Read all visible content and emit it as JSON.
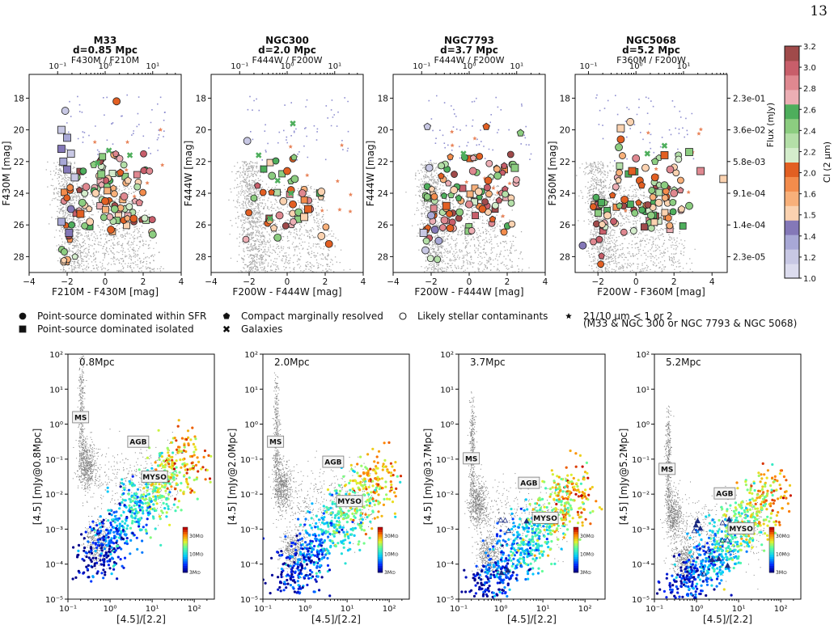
{
  "page_number": "13",
  "colors": {
    "background_points": "#8c8c8c",
    "stellar_contaminant": "#8f8fd0",
    "star_marker": "#e8845a",
    "ci_bins": [
      "#dcdcee",
      "#c8c8e4",
      "#a8a8d6",
      "#8478b8",
      "#fbd2b0",
      "#f8b07a",
      "#f38c4c",
      "#e25f22",
      "#d4edcc",
      "#b4dfa8",
      "#8ccd80",
      "#4eae5c",
      "#ecaeb4",
      "#df8890",
      "#c85e6a",
      "#a04a4a"
    ]
  },
  "top_panels": [
    {
      "title": "M33",
      "subtitle": "d=0.85 Mpc",
      "top_axis_label": "F430M / F210M",
      "x_label": "F210M - F430M [mag]",
      "y_label": "F430M [mag]",
      "x_ticks": [
        "−4",
        "−2",
        "0",
        "2",
        "4"
      ],
      "y_ticks": [
        "18",
        "20",
        "22",
        "24",
        "26",
        "28"
      ],
      "top_ticks": [
        "10⁻¹",
        "10⁰",
        "10¹"
      ]
    },
    {
      "title": "NGC300",
      "subtitle": "d=2.0 Mpc",
      "top_axis_label": "F444W / F200W",
      "x_label": "F200W - F444W [mag]",
      "y_label": "F444W [mag]",
      "x_ticks": [
        "−4",
        "−2",
        "0",
        "2",
        "4"
      ],
      "y_ticks": [
        "18",
        "20",
        "22",
        "24",
        "26",
        "28"
      ],
      "top_ticks": [
        "10⁻¹",
        "10⁰",
        "10¹"
      ]
    },
    {
      "title": "NGC7793",
      "subtitle": "d=3.7 Mpc",
      "top_axis_label": "F444W / F200W",
      "x_label": "F200W - F444W [mag]",
      "y_label": "F444W [mag]",
      "x_ticks": [
        "−4",
        "−2",
        "0",
        "2",
        "4"
      ],
      "y_ticks": [
        "18",
        "20",
        "22",
        "24",
        "26",
        "28"
      ],
      "top_ticks": [
        "10⁻¹",
        "10⁰",
        "10¹"
      ]
    },
    {
      "title": "NGC5068",
      "subtitle": "d=5.2 Mpc",
      "top_axis_label": "F360M / F200W",
      "x_label": "F200W - F360M [mag]",
      "y_label": "F360M [mag]",
      "x_ticks": [
        "−2",
        "0",
        "2",
        "4"
      ],
      "y_ticks": [
        "18",
        "20",
        "22",
        "24",
        "26",
        "28"
      ],
      "top_ticks": [
        "10⁻¹",
        "10⁰",
        "10¹"
      ],
      "right_axis_label": "Flux (mJy)",
      "right_ticks": [
        "2.3e-01",
        "3.6e-02",
        "5.8e-03",
        "9.1e-04",
        "1.4e-04",
        "2.3e-05"
      ]
    }
  ],
  "colorbar": {
    "label": "CI (2 μm)",
    "ticks": [
      "1.0",
      "1.2",
      "1.4",
      "1.5",
      "1.6",
      "2.0",
      "2.2",
      "2.4",
      "2.6",
      "2.8",
      "3.0",
      "3.2"
    ]
  },
  "legend": {
    "items": [
      {
        "symbol": "circle",
        "label": "Point-source dominated within SFR"
      },
      {
        "symbol": "square",
        "label": "Point-source dominated isolated"
      },
      {
        "symbol": "pentagon",
        "label": "Compact marginally resolved"
      },
      {
        "symbol": "cross",
        "label": "Galaxies"
      },
      {
        "symbol": "open-circle",
        "label": "Likely stellar contaminants"
      },
      {
        "symbol": "star",
        "label": "21/10 μm < 1 or 2"
      }
    ],
    "star_note": "(M33 & NGC 300 or NGC 7793 & NGC 5068)"
  },
  "bottom_panels": [
    {
      "distance_label": "0.8Mpc",
      "y_label": "[4.5] [mJy@0.8Mpc]",
      "x_label": "[4.5]/[2.2]"
    },
    {
      "distance_label": "2.0Mpc",
      "y_label": "[4.5] [mJy@2.0Mpc]",
      "x_label": "[4.5]/[2.2]"
    },
    {
      "distance_label": "3.7Mpc",
      "y_label": "[4.5] [mJy@3.7Mpc]",
      "x_label": "[4.5]/[2.2]"
    },
    {
      "distance_label": "5.2Mpc",
      "y_label": "[4.5] [mJy@5.2Mpc]",
      "x_label": "[4.5]/[2.2]"
    }
  ],
  "bottom_axes": {
    "x_ticks": [
      "10⁻¹",
      "10⁰",
      "10¹",
      "10²"
    ],
    "y_ticks": [
      "10⁻⁵",
      "10⁻⁴",
      "10⁻³",
      "10⁻²",
      "10⁻¹",
      "10⁰",
      "10¹",
      "10²"
    ],
    "region_labels": [
      "MS",
      "AGB",
      "MYSO"
    ],
    "mass_colorbar_ticks": [
      "30M⊙",
      "10M⊙",
      "3M⊙"
    ]
  },
  "chart_data": [
    {
      "type": "scatter",
      "panel": "M33",
      "title": "M33",
      "xlabel": "F210M - F430M [mag]",
      "ylabel": "F430M [mag]",
      "xlim": [
        -4,
        4
      ],
      "ylim": [
        29,
        16.5
      ],
      "y_inverted": true,
      "series": [
        {
          "name": "Point-source dominated within SFR",
          "points": [
            [
              -2.1,
              18.8
            ],
            [
              0.6,
              18.2
            ],
            [
              -1.5,
              23.0
            ],
            [
              -1.0,
              23.6
            ],
            [
              -0.5,
              24.0
            ],
            [
              0.0,
              24.5
            ],
            [
              0.5,
              25.0
            ],
            [
              1.0,
              24.2
            ],
            [
              -0.3,
              22.9
            ],
            [
              1.5,
              25.6
            ],
            [
              2.5,
              26.6
            ],
            [
              -1.8,
              25.0
            ],
            [
              -0.8,
              25.8
            ],
            [
              0.3,
              26.3
            ],
            [
              -1.2,
              24.6
            ]
          ]
        },
        {
          "name": "Point-source dominated isolated",
          "points": [
            [
              -2.3,
              20.0
            ],
            [
              -2.0,
              20.5
            ],
            [
              -2.3,
              21.2
            ],
            [
              -1.8,
              21.5
            ],
            [
              -2.2,
              22.0
            ],
            [
              -2.0,
              22.5
            ],
            [
              -1.6,
              23.0
            ],
            [
              -2.3,
              25.8
            ],
            [
              -1.9,
              26.5
            ],
            [
              -1.3,
              25.3
            ],
            [
              -0.2,
              22.8
            ]
          ]
        },
        {
          "name": "Compact marginally resolved",
          "points": [
            [
              1.2,
              23.2
            ],
            [
              0.8,
              22.7
            ],
            [
              -0.6,
              22.2
            ],
            [
              1.8,
              24.6
            ]
          ]
        },
        {
          "name": "Galaxies",
          "points": [
            [
              1.3,
              21.6
            ],
            [
              0.2,
              21.3
            ],
            [
              -0.4,
              22.1
            ]
          ]
        }
      ]
    },
    {
      "type": "scatter",
      "panel": "NGC300",
      "title": "NGC300",
      "xlabel": "F200W - F444W [mag]",
      "ylabel": "F444W [mag]",
      "xlim": [
        -4,
        4
      ],
      "ylim": [
        29,
        16.5
      ],
      "y_inverted": true,
      "series": [
        {
          "name": "Point-source dominated within SFR",
          "points": [
            [
              -2.1,
              20.7
            ],
            [
              0.0,
              22.6
            ],
            [
              0.4,
              23.1
            ],
            [
              0.8,
              24.0
            ],
            [
              -0.2,
              24.5
            ],
            [
              0.3,
              24.7
            ],
            [
              0.6,
              25.2
            ],
            [
              -0.4,
              25.4
            ],
            [
              1.8,
              26.7
            ],
            [
              2.2,
              27.2
            ],
            [
              -0.5,
              26.8
            ],
            [
              1.2,
              25.0
            ],
            [
              1.8,
              23.9
            ],
            [
              0.2,
              23.8
            ],
            [
              -0.8,
              22.9
            ]
          ]
        },
        {
          "name": "Point-source dominated isolated",
          "points": [
            [
              0.9,
              25.5
            ],
            [
              1.1,
              25.0
            ]
          ]
        },
        {
          "name": "Compact marginally resolved",
          "points": [
            [
              -0.7,
              26.2
            ]
          ]
        },
        {
          "name": "Galaxies",
          "points": [
            [
              0.3,
              19.6
            ],
            [
              -1.5,
              21.6
            ],
            [
              -0.5,
              23.2
            ],
            [
              -0.9,
              25.6
            ],
            [
              0.2,
              24.0
            ]
          ]
        }
      ]
    },
    {
      "type": "scatter",
      "panel": "NGC7793",
      "title": "NGC7793",
      "xlabel": "F200W - F444W [mag]",
      "ylabel": "F444W [mag]",
      "xlim": [
        -4,
        4
      ],
      "ylim": [
        29,
        16.5
      ],
      "y_inverted": true,
      "series": [
        {
          "name": "Point-source dominated within SFR",
          "points": [
            [
              -2.1,
              22.4
            ],
            [
              -2.0,
              25.4
            ],
            [
              -1.8,
              26.3
            ],
            [
              -2.3,
              27.6
            ],
            [
              -1.6,
              27.0
            ],
            [
              -1.0,
              26.2
            ],
            [
              -0.5,
              25.2
            ],
            [
              0.0,
              24.7
            ],
            [
              0.5,
              23.9
            ],
            [
              1.0,
              23.2
            ],
            [
              1.5,
              22.9
            ],
            [
              0.2,
              22.6
            ],
            [
              -0.8,
              23.8
            ],
            [
              0.7,
              25.0
            ],
            [
              2.3,
              22.2
            ],
            [
              -1.3,
              25.7
            ]
          ]
        },
        {
          "name": "Point-source dominated isolated",
          "points": [
            [
              -2.4,
              26.5
            ],
            [
              -1.2,
              24.8
            ],
            [
              2.4,
              22.4
            ]
          ]
        },
        {
          "name": "Compact marginally resolved",
          "points": [
            [
              -2.2,
              19.8
            ],
            [
              0.9,
              19.8
            ],
            [
              2.7,
              20.2
            ]
          ]
        },
        {
          "name": "Galaxies",
          "points": [
            [
              -0.3,
              21.5
            ]
          ]
        }
      ]
    },
    {
      "type": "scatter",
      "panel": "NGC5068",
      "title": "NGC5068",
      "xlabel": "F200W - F360M [mag]",
      "ylabel": "F360M [mag]",
      "xlim": [
        -3.2,
        4.8
      ],
      "ylim": [
        29,
        16.5
      ],
      "y_inverted": true,
      "series": [
        {
          "name": "Point-source dominated within SFR",
          "points": [
            [
              -0.3,
              19.5
            ],
            [
              -0.8,
              20.6
            ],
            [
              -0.9,
              21.1
            ],
            [
              0.0,
              21.8
            ],
            [
              0.5,
              22.4
            ],
            [
              1.0,
              23.0
            ],
            [
              1.5,
              23.5
            ],
            [
              2.0,
              24.0
            ],
            [
              1.2,
              24.6
            ],
            [
              0.2,
              23.2
            ],
            [
              2.8,
              24.8
            ],
            [
              -2.8,
              27.3
            ],
            [
              -1.5,
              25.4
            ],
            [
              -0.6,
              24.4
            ],
            [
              0.8,
              25.4
            ],
            [
              1.8,
              22.5
            ]
          ]
        },
        {
          "name": "Point-source dominated isolated",
          "points": [
            [
              -0.8,
              19.9
            ],
            [
              1.5,
              21.6
            ],
            [
              2.8,
              21.4
            ],
            [
              3.4,
              22.6
            ],
            [
              4.6,
              23.1
            ],
            [
              -0.2,
              22.6
            ]
          ]
        },
        {
          "name": "Compact marginally resolved",
          "points": [
            [
              2.4,
              25.0
            ],
            [
              0.3,
              23.5
            ],
            [
              1.0,
              22.0
            ]
          ]
        },
        {
          "name": "Galaxies",
          "points": [
            [
              1.5,
              21.0
            ],
            [
              0.6,
              21.5
            ]
          ]
        }
      ]
    },
    {
      "type": "scatter",
      "panel": "0.8Mpc",
      "xlabel": "[4.5]/[2.2]",
      "ylabel": "[4.5] [mJy@0.8Mpc]",
      "x_scale": "log",
      "y_scale": "log",
      "xlim": [
        0.1,
        300
      ],
      "ylim": [
        1e-05,
        100
      ],
      "series": [
        {
          "name": "MS",
          "points": [
            [
              0.2,
              1.5
            ],
            [
              0.22,
              0.3
            ],
            [
              0.25,
              0.05
            ],
            [
              0.3,
              0.02
            ],
            [
              0.4,
              0.01
            ]
          ]
        },
        {
          "name": "AGB",
          "points": [
            [
              3,
              0.3
            ],
            [
              10,
              0.2
            ],
            [
              30,
              0.3
            ],
            [
              100,
              0.4
            ]
          ]
        },
        {
          "name": "MYSO",
          "points": [
            [
              1,
              0.003
            ],
            [
              3,
              0.01
            ],
            [
              8,
              0.03
            ],
            [
              20,
              0.08
            ]
          ]
        }
      ]
    },
    {
      "type": "scatter",
      "panel": "2.0Mpc",
      "xlabel": "[4.5]/[2.2]",
      "ylabel": "[4.5] [mJy@2.0Mpc]",
      "x_scale": "log",
      "y_scale": "log",
      "xlim": [
        0.1,
        300
      ],
      "ylim": [
        1e-05,
        100
      ],
      "series": [
        {
          "name": "MS",
          "points": [
            [
              0.2,
              0.3
            ],
            [
              0.22,
              0.05
            ],
            [
              0.25,
              0.01
            ],
            [
              0.3,
              0.003
            ]
          ]
        },
        {
          "name": "AGB",
          "points": [
            [
              3,
              0.08
            ],
            [
              10,
              0.05
            ],
            [
              30,
              0.06
            ],
            [
              100,
              0.05
            ]
          ]
        },
        {
          "name": "MYSO",
          "points": [
            [
              1,
              0.0006
            ],
            [
              3,
              0.002
            ],
            [
              8,
              0.006
            ],
            [
              20,
              0.015
            ]
          ]
        }
      ]
    },
    {
      "type": "scatter",
      "panel": "3.7Mpc",
      "xlabel": "[4.5]/[2.2]",
      "ylabel": "[4.5] [mJy@3.7Mpc]",
      "x_scale": "log",
      "y_scale": "log",
      "xlim": [
        0.1,
        300
      ],
      "ylim": [
        1e-05,
        100
      ],
      "series": [
        {
          "name": "MS",
          "points": [
            [
              0.2,
              0.1
            ],
            [
              0.22,
              0.02
            ],
            [
              0.25,
              0.005
            ],
            [
              0.3,
              0.001
            ]
          ]
        },
        {
          "name": "AGB",
          "points": [
            [
              3,
              0.02
            ],
            [
              10,
              0.015
            ],
            [
              30,
              0.02
            ],
            [
              100,
              0.02
            ]
          ]
        },
        {
          "name": "MYSO",
          "points": [
            [
              1,
              0.0002
            ],
            [
              3,
              0.0008
            ],
            [
              8,
              0.002
            ],
            [
              20,
              0.005
            ]
          ]
        }
      ]
    },
    {
      "type": "scatter",
      "panel": "5.2Mpc",
      "xlabel": "[4.5]/[2.2]",
      "ylabel": "[4.5] [mJy@5.2Mpc]",
      "x_scale": "log",
      "y_scale": "log",
      "xlim": [
        0.1,
        300
      ],
      "ylim": [
        1e-05,
        100
      ],
      "series": [
        {
          "name": "MS",
          "points": [
            [
              0.2,
              0.05
            ],
            [
              0.22,
              0.01
            ],
            [
              0.25,
              0.002
            ],
            [
              0.3,
              0.0006
            ]
          ]
        },
        {
          "name": "AGB",
          "points": [
            [
              3,
              0.01
            ],
            [
              10,
              0.008
            ],
            [
              30,
              0.01
            ],
            [
              100,
              0.01
            ]
          ]
        },
        {
          "name": "MYSO",
          "points": [
            [
              1,
              0.0001
            ],
            [
              3,
              0.0004
            ],
            [
              8,
              0.001
            ],
            [
              20,
              0.003
            ]
          ]
        }
      ]
    }
  ]
}
